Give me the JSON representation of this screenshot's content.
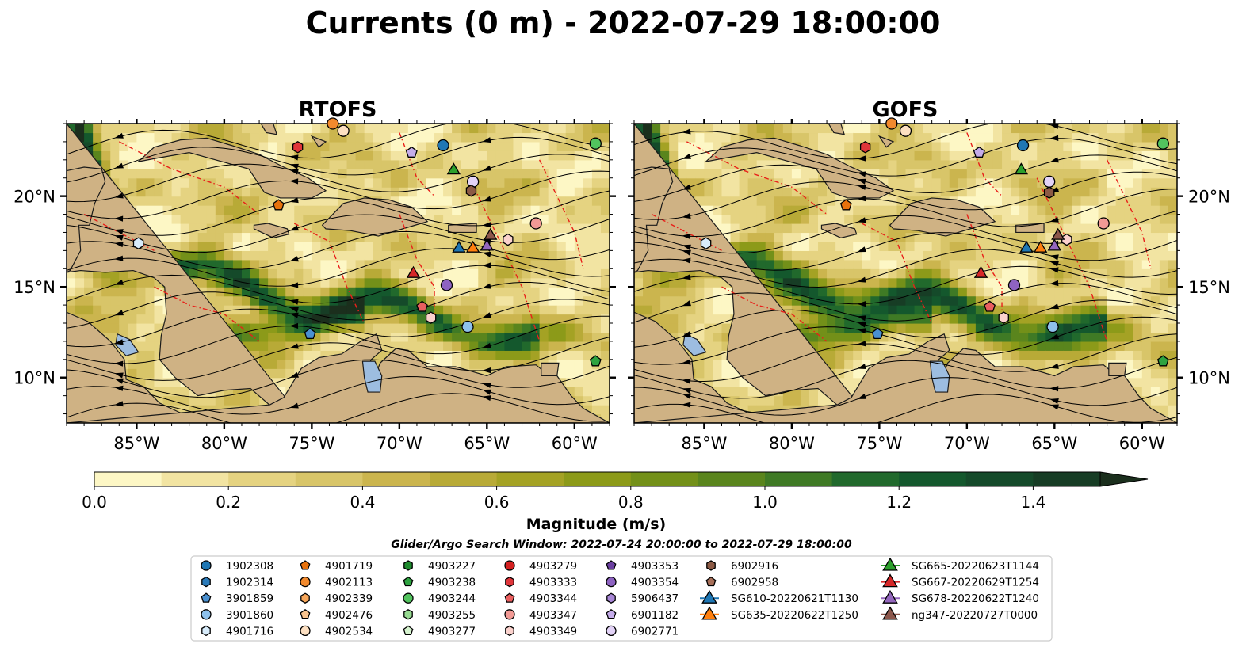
{
  "figure": {
    "title": "Currents (0 m) - 2022-07-29 18:00:00",
    "search_window": "Glider/Argo Search Window: 2022-07-24 20:00:00 to 2022-07-29 18:00:00"
  },
  "colors": {
    "land": "#cfb284",
    "coast": "#1a1a1a",
    "lake": "#9dbde0",
    "eez": "#e8201a",
    "streamline": "#000000"
  },
  "chart_data": [
    {
      "type": "heatmap",
      "title": "RTOFS",
      "xlim": [
        -89,
        -58
      ],
      "ylim": [
        7.5,
        24.0
      ],
      "x_ticks": [
        -85,
        -80,
        -75,
        -70,
        -65,
        -60
      ],
      "x_tick_labels": [
        "85°W",
        "80°W",
        "75°W",
        "70°W",
        "65°W",
        "60°W"
      ],
      "y_ticks": [
        10,
        15,
        20
      ],
      "y_tick_labels": [
        "10°N",
        "15°N",
        "20°N"
      ],
      "y_label_side": "left"
    },
    {
      "type": "heatmap",
      "title": "GOFS",
      "xlim": [
        -89,
        -58
      ],
      "ylim": [
        7.5,
        24.0
      ],
      "x_ticks": [
        -85,
        -80,
        -75,
        -70,
        -65,
        -60
      ],
      "x_tick_labels": [
        "85°W",
        "80°W",
        "75°W",
        "70°W",
        "65°W",
        "60°W"
      ],
      "y_ticks": [
        10,
        15,
        20
      ],
      "y_tick_labels": [
        "10°N",
        "15°N",
        "20°N"
      ],
      "y_label_side": "right"
    }
  ],
  "colorbar": {
    "label": "Magnitude (m/s)",
    "vmin": 0.0,
    "vmax": 1.6,
    "ticks": [
      0.0,
      0.2,
      0.4,
      0.6,
      0.8,
      1.0,
      1.2,
      1.4
    ],
    "tick_labels": [
      "0.0",
      "0.2",
      "0.4",
      "0.6",
      "0.8",
      "1.0",
      "1.2",
      "1.4"
    ],
    "extend": "max",
    "colors": [
      "#fdf7c5",
      "#f2e4a2",
      "#e5d381",
      "#d8c569",
      "#cbb54e",
      "#b8aa37",
      "#a4a224",
      "#8c9a19",
      "#739019",
      "#5a851d",
      "#3f7a25",
      "#21692c",
      "#14582d",
      "#154a2a",
      "#173d25",
      "#1b2f1d"
    ]
  },
  "legend": {
    "columns": [
      [
        {
          "label": "1902308",
          "marker": "circle",
          "color": "#1f77b4"
        },
        {
          "label": "1902314",
          "marker": "hexagon",
          "color": "#2b7bba"
        },
        {
          "label": "3901859",
          "marker": "pentagon",
          "color": "#4a90d0"
        },
        {
          "label": "3901860",
          "marker": "circle",
          "color": "#8ec1ec"
        },
        {
          "label": "4901716",
          "marker": "hexagon",
          "color": "#d8ecfb"
        }
      ],
      [
        {
          "label": "4901719",
          "marker": "pentagon",
          "color": "#e8720c"
        },
        {
          "label": "4902113",
          "marker": "circle",
          "color": "#f28a2e"
        },
        {
          "label": "4902339",
          "marker": "hexagon",
          "color": "#f7a65a"
        },
        {
          "label": "4902476",
          "marker": "pentagon",
          "color": "#f9c48f"
        },
        {
          "label": "4902534",
          "marker": "circle",
          "color": "#fde0c2"
        }
      ],
      [
        {
          "label": "4903227",
          "marker": "hexagon",
          "color": "#1e8b2e"
        },
        {
          "label": "4903238",
          "marker": "pentagon",
          "color": "#2ea340"
        },
        {
          "label": "4903244",
          "marker": "circle",
          "color": "#52c35e"
        },
        {
          "label": "4903255",
          "marker": "hexagon",
          "color": "#96da91"
        },
        {
          "label": "4903277",
          "marker": "pentagon",
          "color": "#d6f3cf"
        }
      ],
      [
        {
          "label": "4903279",
          "marker": "circle",
          "color": "#d42020"
        },
        {
          "label": "4903333",
          "marker": "hexagon",
          "color": "#e0353a"
        },
        {
          "label": "4903344",
          "marker": "pentagon",
          "color": "#ea5f5f"
        },
        {
          "label": "4903347",
          "marker": "circle",
          "color": "#f29a95"
        },
        {
          "label": "4903349",
          "marker": "hexagon",
          "color": "#fbd2cd"
        }
      ],
      [
        {
          "label": "4903353",
          "marker": "pentagon",
          "color": "#6b3fa0"
        },
        {
          "label": "4903354",
          "marker": "circle",
          "color": "#8e63c2"
        },
        {
          "label": "5906437",
          "marker": "hexagon",
          "color": "#a887d6"
        },
        {
          "label": "6901182",
          "marker": "pentagon",
          "color": "#c5acea"
        },
        {
          "label": "6902771",
          "marker": "circle",
          "color": "#e3d3f7"
        }
      ],
      [
        {
          "label": "6902916",
          "marker": "hexagon",
          "color": "#8c5a45"
        },
        {
          "label": "6902958",
          "marker": "pentagon",
          "color": "#a8705a"
        },
        {
          "label": "SG610-20220621T1130",
          "marker": "triangle-line",
          "color": "#1f77b4"
        },
        {
          "label": "SG635-20220622T1250",
          "marker": "triangle-line",
          "color": "#ff7f0e"
        }
      ],
      [
        {
          "label": "SG665-20220623T1144",
          "marker": "triangle-line",
          "color": "#2ca02c"
        },
        {
          "label": "SG667-20220629T1254",
          "marker": "triangle-line",
          "color": "#d62728"
        },
        {
          "label": "SG678-20220622T1240",
          "marker": "triangle-line",
          "color": "#9467bd"
        },
        {
          "label": "ng347-20220727T0000",
          "marker": "triangle-line",
          "color": "#8c564b"
        }
      ]
    ]
  },
  "markers": [
    {
      "label": "1902308",
      "rtofs": [
        -67.5,
        22.8
      ],
      "gofs": [
        -66.8,
        22.8
      ]
    },
    {
      "label": "4902113",
      "rtofs": [
        -73.8,
        24.0
      ],
      "gofs": [
        -74.3,
        24.0
      ]
    },
    {
      "label": "4903347",
      "rtofs": [
        -62.2,
        18.5
      ],
      "gofs": [
        -62.2,
        18.5
      ]
    },
    {
      "label": "4903244",
      "rtofs": [
        -58.8,
        22.9
      ],
      "gofs": [
        -58.8,
        22.9
      ]
    },
    {
      "label": "6902771",
      "rtofs": [
        -65.8,
        20.8
      ],
      "gofs": [
        -65.3,
        20.8
      ]
    },
    {
      "label": "6902916",
      "rtofs": [
        -65.9,
        20.3
      ],
      "gofs": [
        -65.3,
        20.2
      ]
    },
    {
      "label": "4903333",
      "rtofs": [
        -75.8,
        22.7
      ],
      "gofs": [
        -75.8,
        22.7
      ]
    },
    {
      "label": "6901182",
      "rtofs": [
        -69.3,
        22.4
      ],
      "gofs": [
        -69.3,
        22.4
      ]
    },
    {
      "label": "4902534",
      "rtofs": [
        -73.2,
        23.6
      ],
      "gofs": [
        -73.5,
        23.6
      ]
    },
    {
      "label": "4901719",
      "rtofs": [
        -76.9,
        19.5
      ],
      "gofs": [
        -76.9,
        19.5
      ]
    },
    {
      "label": "4901716",
      "rtofs": [
        -84.9,
        17.4
      ],
      "gofs": [
        -84.9,
        17.4
      ]
    },
    {
      "label": "4903349",
      "rtofs": [
        -63.8,
        17.6
      ],
      "gofs": [
        -64.3,
        17.6
      ]
    },
    {
      "label": "3901859",
      "rtofs": [
        -75.1,
        12.4
      ],
      "gofs": [
        -75.1,
        12.4
      ]
    },
    {
      "label": "3901860",
      "rtofs": [
        -66.1,
        12.8
      ],
      "gofs": [
        -65.1,
        12.8
      ]
    },
    {
      "label": "4903354",
      "rtofs": [
        -67.3,
        15.1
      ],
      "gofs": [
        -67.3,
        15.1
      ]
    },
    {
      "label": "4903344",
      "rtofs": [
        -68.7,
        13.9
      ],
      "gofs": [
        -68.7,
        13.9
      ]
    },
    {
      "label": "4903349",
      "rtofs": [
        -68.2,
        13.3
      ],
      "gofs": [
        -67.9,
        13.3
      ]
    },
    {
      "label": "4903238",
      "rtofs": [
        -58.8,
        10.9
      ],
      "gofs": [
        -58.8,
        10.9
      ]
    },
    {
      "label": "SG665-20220623T1144",
      "rtofs": [
        -66.9,
        21.5
      ],
      "gofs": [
        -66.9,
        21.5
      ]
    },
    {
      "label": "SG667-20220629T1254",
      "rtofs": [
        -69.2,
        15.8
      ],
      "gofs": [
        -69.2,
        15.8
      ]
    },
    {
      "label": "SG610-20220621T1130",
      "rtofs": [
        -66.6,
        17.2
      ],
      "gofs": [
        -66.6,
        17.2
      ]
    },
    {
      "label": "SG635-20220622T1250",
      "rtofs": [
        -65.8,
        17.2
      ],
      "gofs": [
        -65.8,
        17.2
      ]
    },
    {
      "label": "SG678-20220622T1240",
      "rtofs": [
        -65.0,
        17.3
      ],
      "gofs": [
        -65.0,
        17.3
      ]
    },
    {
      "label": "ng347-20220727T0000",
      "rtofs": [
        -64.8,
        17.9
      ],
      "gofs": [
        -64.8,
        17.9
      ]
    }
  ]
}
